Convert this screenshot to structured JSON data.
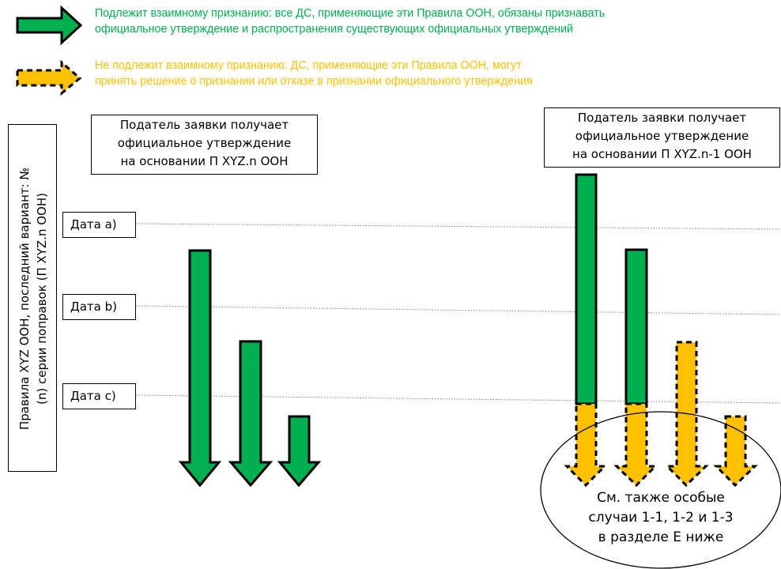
{
  "legend": {
    "mutual": {
      "line1": "Подлежит взаимному признанию: все ДС, применяющие эти Правила ООН, обязаны признавать",
      "line2": "официальное утверждение и распространения существующих официальных утверждений"
    },
    "not_mutual": {
      "line1": "Не подлежит взаимному признанию: ДС, применяющие эти Правила ООН, могут",
      "line2": "принять решение о признании или отказе в признании официального утверждения"
    }
  },
  "vertical_label": {
    "line1": "Правила XYZ ООН, последний вариант: №",
    "line2": "(n) серии поправок (П XYZ.n ООН)"
  },
  "dates": {
    "a": "Дата а)",
    "b": "Дата b)",
    "c": "Дата с)"
  },
  "left_header": {
    "line1": "Податель заявки получает",
    "line2": "официальное утверждение",
    "line3": "на основании П XYZ.n ООН"
  },
  "right_header": {
    "line1": "Податель заявки получает",
    "line2": "официальное утверждение",
    "line3": "на основании П XYZ.n-1 ООН"
  },
  "note": {
    "line1": "См. также особые",
    "line2": "случаи 1-1, 1-2 и 1-3",
    "line3": "в разделе Е ниже"
  },
  "colors": {
    "green": "#00b050",
    "yellow": "#ffc000",
    "outline": "#000000",
    "dotted_line": "#7f7f7f"
  }
}
